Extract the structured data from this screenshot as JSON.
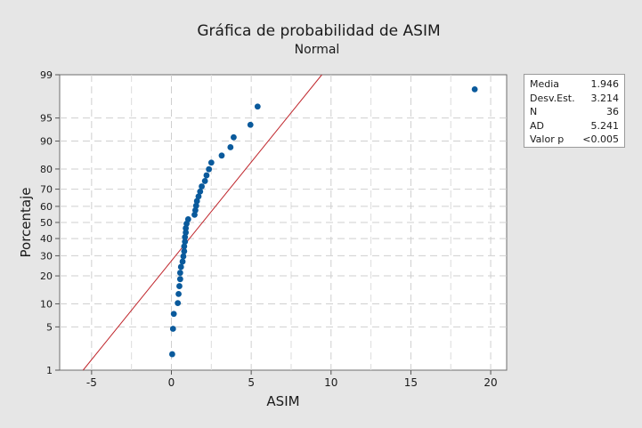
{
  "chart_data": {
    "type": "scatter",
    "title": "Gráfica de probabilidad de ASIM",
    "subtitle": "Normal",
    "xlabel": "ASIM",
    "ylabel": "Porcentaje",
    "xlim": [
      -7,
      21
    ],
    "ylim_percent": [
      1,
      99
    ],
    "y_scale": "normal-probability",
    "x_ticks": [
      "-5",
      "0",
      "5",
      "10",
      "15",
      "20"
    ],
    "x_tick_values": [
      -5,
      0,
      5,
      10,
      15,
      20
    ],
    "y_ticks": [
      "1",
      "5",
      "10",
      "20",
      "30",
      "40",
      "50",
      "60",
      "70",
      "80",
      "90",
      "95",
      "99"
    ],
    "y_tick_values": [
      1,
      5,
      10,
      20,
      30,
      40,
      50,
      60,
      70,
      80,
      90,
      95,
      99
    ],
    "grid": true,
    "points": [
      {
        "x": 0.05,
        "y": 1.9
      },
      {
        "x": 0.1,
        "y": 4.7
      },
      {
        "x": 0.15,
        "y": 7.5
      },
      {
        "x": 0.4,
        "y": 10.2
      },
      {
        "x": 0.45,
        "y": 13.0
      },
      {
        "x": 0.5,
        "y": 15.8
      },
      {
        "x": 0.55,
        "y": 18.6
      },
      {
        "x": 0.55,
        "y": 21.4
      },
      {
        "x": 0.6,
        "y": 24.2
      },
      {
        "x": 0.7,
        "y": 26.9
      },
      {
        "x": 0.75,
        "y": 29.7
      },
      {
        "x": 0.8,
        "y": 32.5
      },
      {
        "x": 0.8,
        "y": 35.3
      },
      {
        "x": 0.85,
        "y": 38.1
      },
      {
        "x": 0.85,
        "y": 40.9
      },
      {
        "x": 0.9,
        "y": 43.7
      },
      {
        "x": 0.9,
        "y": 46.4
      },
      {
        "x": 0.95,
        "y": 49.2
      },
      {
        "x": 1.05,
        "y": 52.0
      },
      {
        "x": 1.45,
        "y": 54.8
      },
      {
        "x": 1.5,
        "y": 57.6
      },
      {
        "x": 1.55,
        "y": 60.4
      },
      {
        "x": 1.6,
        "y": 63.2
      },
      {
        "x": 1.7,
        "y": 65.9
      },
      {
        "x": 1.8,
        "y": 68.7
      },
      {
        "x": 1.9,
        "y": 71.5
      },
      {
        "x": 2.1,
        "y": 74.3
      },
      {
        "x": 2.2,
        "y": 77.1
      },
      {
        "x": 2.35,
        "y": 79.9
      },
      {
        "x": 2.5,
        "y": 82.7
      },
      {
        "x": 3.15,
        "y": 85.4
      },
      {
        "x": 3.7,
        "y": 88.2
      },
      {
        "x": 3.9,
        "y": 91.0
      },
      {
        "x": 4.95,
        "y": 93.8
      },
      {
        "x": 5.4,
        "y": 96.6
      },
      {
        "x": 19.0,
        "y": 98.2
      }
    ],
    "fit_line": {
      "mean": 1.946,
      "stdev": 3.214,
      "color": "#c0272d"
    },
    "point_color": "#0a5a9c",
    "stats": [
      {
        "label": "Media",
        "value": "1.946"
      },
      {
        "label": "Desv.Est.",
        "value": "3.214"
      },
      {
        "label": "N",
        "value": "36"
      },
      {
        "label": "AD",
        "value": "5.241"
      },
      {
        "label": "Valor p",
        "value": "<0.005"
      }
    ]
  }
}
